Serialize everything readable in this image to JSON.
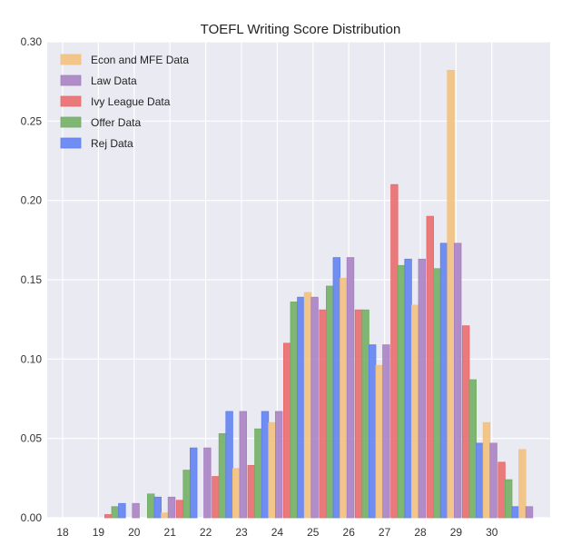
{
  "chart_data": {
    "type": "bar",
    "title": "TOEFL Writing Score Distribution",
    "xlabel": "",
    "ylabel": "",
    "categories": [
      "18",
      "19",
      "20",
      "21",
      "22",
      "23",
      "24",
      "25",
      "26",
      "27",
      "28",
      "29",
      "30"
    ],
    "ylim": [
      0,
      0.3
    ],
    "yticks": [
      "0.00",
      "0.05",
      "0.10",
      "0.15",
      "0.20",
      "0.25",
      "0.30"
    ],
    "grid": true,
    "legend_position": "top-left",
    "series": [
      {
        "name": "Ivy League Data",
        "color": "#e8696a",
        "values": [
          0.0,
          0.002,
          0.0,
          0.011,
          0.026,
          0.033,
          0.11,
          0.131,
          0.131,
          0.21,
          0.19,
          0.121,
          0.035
        ]
      },
      {
        "name": "Offer Data",
        "color": "#6fae62",
        "values": [
          0.0,
          0.007,
          0.015,
          0.03,
          0.053,
          0.056,
          0.136,
          0.146,
          0.131,
          0.159,
          0.157,
          0.087,
          0.024
        ]
      },
      {
        "name": "Rej Data",
        "color": "#5e7ff0",
        "values": [
          0.0,
          0.009,
          0.013,
          0.044,
          0.067,
          0.067,
          0.139,
          0.164,
          0.109,
          0.163,
          0.173,
          0.047,
          0.007
        ]
      },
      {
        "name": "Econ and MFE Data",
        "color": "#f2c07c",
        "values": [
          0.0,
          0.0,
          0.003,
          0.0,
          0.031,
          0.06,
          0.142,
          0.151,
          0.096,
          0.134,
          0.282,
          0.06,
          0.043
        ]
      },
      {
        "name": "Law Data",
        "color": "#a77fc2",
        "values": [
          0.0,
          0.009,
          0.013,
          0.044,
          0.067,
          0.067,
          0.139,
          0.164,
          0.109,
          0.163,
          0.173,
          0.047,
          0.007
        ]
      }
    ],
    "legend_order": [
      "Econ and MFE Data",
      "Law Data",
      "Ivy League Data",
      "Offer Data",
      "Rej Data"
    ]
  }
}
